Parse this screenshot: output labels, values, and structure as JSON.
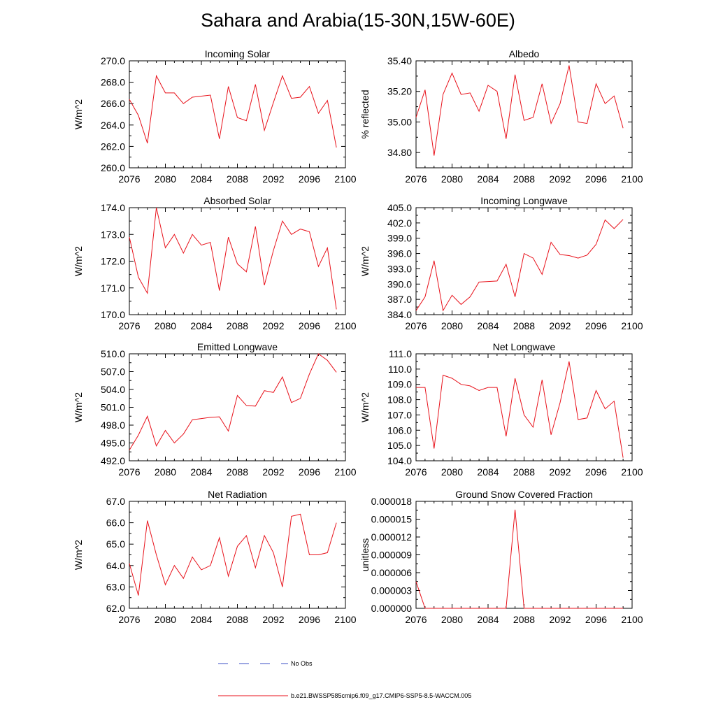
{
  "title": "Sahara and Arabia(15-30N,15W-60E)",
  "legend": {
    "obs_label": "No Obs",
    "obs_color": "#3b4fc4",
    "model_label": "b.e21.BWSSP585cmip6.f09_g17.CMIP6-SSP5-8.5-WACCM.005",
    "model_color": "#e8121b"
  },
  "chart_data": [
    {
      "type": "line",
      "title": "Incoming Solar",
      "ylabel": "W/m^2",
      "xlim": [
        2076,
        2100
      ],
      "xticks": [
        "2076",
        "2080",
        "2084",
        "2088",
        "2092",
        "2096",
        "2100"
      ],
      "ylim": [
        260,
        270
      ],
      "yticks": [
        "260.0",
        "262.0",
        "264.0",
        "266.0",
        "268.0",
        "270.0"
      ],
      "x": [
        2076,
        2077,
        2078,
        2079,
        2080,
        2081,
        2082,
        2083,
        2084,
        2085,
        2086,
        2087,
        2088,
        2089,
        2090,
        2091,
        2092,
        2093,
        2094,
        2095,
        2096,
        2097,
        2098,
        2099
      ],
      "series": [
        {
          "values": [
            266.4,
            264.9,
            262.3,
            268.6,
            267.0,
            267.0,
            266.0,
            266.6,
            266.7,
            266.8,
            262.7,
            267.6,
            264.7,
            264.4,
            267.8,
            263.5,
            266.1,
            268.6,
            266.5,
            266.6,
            267.6,
            265.1,
            266.3,
            261.9
          ]
        }
      ]
    },
    {
      "type": "line",
      "title": "Albedo",
      "ylabel": "% reflected",
      "xlim": [
        2076,
        2100
      ],
      "xticks": [
        "2076",
        "2080",
        "2084",
        "2088",
        "2092",
        "2096",
        "2100"
      ],
      "ylim": [
        34.7,
        35.4
      ],
      "yticks": [
        "34.80",
        "35.00",
        "35.20",
        "35.40"
      ],
      "x": [
        2076,
        2077,
        2078,
        2079,
        2080,
        2081,
        2082,
        2083,
        2084,
        2085,
        2086,
        2087,
        2088,
        2089,
        2090,
        2091,
        2092,
        2093,
        2094,
        2095,
        2096,
        2097,
        2098,
        2099
      ],
      "series": [
        {
          "values": [
            35.03,
            35.21,
            34.78,
            35.18,
            35.32,
            35.18,
            35.19,
            35.07,
            35.24,
            35.2,
            34.89,
            35.31,
            35.01,
            35.03,
            35.25,
            34.99,
            35.12,
            35.37,
            35.0,
            34.99,
            35.25,
            35.12,
            35.17,
            34.96
          ]
        }
      ]
    },
    {
      "type": "line",
      "title": "Absorbed Solar",
      "ylabel": "W/m^2",
      "xlim": [
        2076,
        2100
      ],
      "xticks": [
        "2076",
        "2080",
        "2084",
        "2088",
        "2092",
        "2096",
        "2100"
      ],
      "ylim": [
        170,
        174
      ],
      "yticks": [
        "170.0",
        "171.0",
        "172.0",
        "173.0",
        "174.0"
      ],
      "x": [
        2076,
        2077,
        2078,
        2079,
        2080,
        2081,
        2082,
        2083,
        2084,
        2085,
        2086,
        2087,
        2088,
        2089,
        2090,
        2091,
        2092,
        2093,
        2094,
        2095,
        2096,
        2097,
        2098,
        2099
      ],
      "series": [
        {
          "values": [
            172.9,
            171.4,
            170.8,
            174.0,
            172.5,
            173.0,
            172.3,
            173.0,
            172.6,
            172.7,
            170.9,
            172.9,
            171.9,
            171.6,
            173.3,
            171.1,
            172.4,
            173.5,
            173.0,
            173.2,
            173.1,
            171.8,
            172.5,
            170.2
          ]
        }
      ]
    },
    {
      "type": "line",
      "title": "Incoming Longwave",
      "ylabel": "W/m^2",
      "xlim": [
        2076,
        2100
      ],
      "xticks": [
        "2076",
        "2080",
        "2084",
        "2088",
        "2092",
        "2096",
        "2100"
      ],
      "ylim": [
        384,
        405
      ],
      "yticks": [
        "384.0",
        "387.0",
        "390.0",
        "393.0",
        "396.0",
        "399.0",
        "402.0",
        "405.0"
      ],
      "x": [
        2076,
        2077,
        2078,
        2079,
        2080,
        2081,
        2082,
        2083,
        2084,
        2085,
        2086,
        2087,
        2088,
        2089,
        2090,
        2091,
        2092,
        2093,
        2094,
        2095,
        2096,
        2097,
        2098,
        2099
      ],
      "series": [
        {
          "values": [
            384.8,
            387.5,
            394.6,
            384.8,
            387.8,
            386.0,
            387.5,
            390.4,
            390.5,
            390.6,
            393.9,
            387.5,
            396.0,
            395.1,
            391.9,
            398.2,
            395.8,
            395.6,
            395.1,
            395.7,
            397.8,
            402.6,
            400.9,
            402.7
          ]
        }
      ]
    },
    {
      "type": "line",
      "title": "Emitted Longwave",
      "ylabel": "W/m^2",
      "xlim": [
        2076,
        2100
      ],
      "xticks": [
        "2076",
        "2080",
        "2084",
        "2088",
        "2092",
        "2096",
        "2100"
      ],
      "ylim": [
        492,
        510
      ],
      "yticks": [
        "492.0",
        "495.0",
        "498.0",
        "501.0",
        "504.0",
        "507.0",
        "510.0"
      ],
      "x": [
        2076,
        2077,
        2078,
        2079,
        2080,
        2081,
        2082,
        2083,
        2084,
        2085,
        2086,
        2087,
        2088,
        2089,
        2090,
        2091,
        2092,
        2093,
        2094,
        2095,
        2096,
        2097,
        2098,
        2099
      ],
      "series": [
        {
          "values": [
            493.8,
            496.3,
            499.5,
            494.5,
            497.1,
            495.0,
            496.5,
            498.9,
            499.1,
            499.3,
            499.4,
            497.0,
            503.0,
            501.3,
            501.2,
            503.8,
            503.5,
            506.1,
            501.8,
            502.5,
            506.6,
            510.4,
            508.9,
            506.9
          ]
        }
      ]
    },
    {
      "type": "line",
      "title": "Net Longwave",
      "ylabel": "W/m^2",
      "xlim": [
        2076,
        2100
      ],
      "xticks": [
        "2076",
        "2080",
        "2084",
        "2088",
        "2092",
        "2096",
        "2100"
      ],
      "ylim": [
        104,
        111
      ],
      "yticks": [
        "104.0",
        "105.0",
        "106.0",
        "107.0",
        "108.0",
        "109.0",
        "110.0",
        "111.0"
      ],
      "x": [
        2076,
        2077,
        2078,
        2079,
        2080,
        2081,
        2082,
        2083,
        2084,
        2085,
        2086,
        2087,
        2088,
        2089,
        2090,
        2091,
        2092,
        2093,
        2094,
        2095,
        2096,
        2097,
        2098,
        2099
      ],
      "series": [
        {
          "values": [
            108.8,
            108.8,
            104.8,
            109.6,
            109.4,
            109.0,
            108.9,
            108.6,
            108.8,
            108.8,
            105.6,
            109.4,
            107.0,
            106.2,
            109.3,
            105.7,
            107.8,
            110.5,
            106.7,
            106.8,
            108.6,
            107.4,
            107.9,
            104.2
          ]
        }
      ]
    },
    {
      "type": "line",
      "title": "Net Radiation",
      "ylabel": "W/m^2",
      "xlim": [
        2076,
        2100
      ],
      "xticks": [
        "2076",
        "2080",
        "2084",
        "2088",
        "2092",
        "2096",
        "2100"
      ],
      "ylim": [
        62,
        67
      ],
      "yticks": [
        "62.0",
        "63.0",
        "64.0",
        "65.0",
        "66.0",
        "67.0"
      ],
      "x": [
        2076,
        2077,
        2078,
        2079,
        2080,
        2081,
        2082,
        2083,
        2084,
        2085,
        2086,
        2087,
        2088,
        2089,
        2090,
        2091,
        2092,
        2093,
        2094,
        2095,
        2096,
        2097,
        2098,
        2099
      ],
      "series": [
        {
          "values": [
            64.1,
            62.6,
            66.1,
            64.5,
            63.1,
            64.0,
            63.4,
            64.4,
            63.8,
            64.0,
            65.3,
            63.5,
            64.9,
            65.4,
            63.9,
            65.4,
            64.6,
            63.0,
            66.3,
            66.4,
            64.5,
            64.5,
            64.6,
            66.0
          ]
        }
      ]
    },
    {
      "type": "line",
      "title": "Ground Snow Covered Fraction",
      "ylabel": "unitless",
      "xlim": [
        2076,
        2100
      ],
      "xticks": [
        "2076",
        "2080",
        "2084",
        "2088",
        "2092",
        "2096",
        "2100"
      ],
      "ylim": [
        0,
        1.8e-05
      ],
      "yticks": [
        "0.000000",
        "0.000003",
        "0.000006",
        "0.000009",
        "0.000012",
        "0.000015",
        "0.000018"
      ],
      "x": [
        2076,
        2077,
        2078,
        2079,
        2080,
        2081,
        2082,
        2083,
        2084,
        2085,
        2086,
        2087,
        2088,
        2089,
        2090,
        2091,
        2092,
        2093,
        2094,
        2095,
        2096,
        2097,
        2098,
        2099
      ],
      "series": [
        {
          "values": [
            4.5e-06,
            0,
            0,
            0,
            0,
            0,
            0,
            0,
            0,
            0,
            0,
            1.66e-05,
            0,
            0,
            0,
            0,
            0,
            0,
            0,
            0,
            0,
            0,
            0,
            0
          ]
        }
      ]
    }
  ]
}
